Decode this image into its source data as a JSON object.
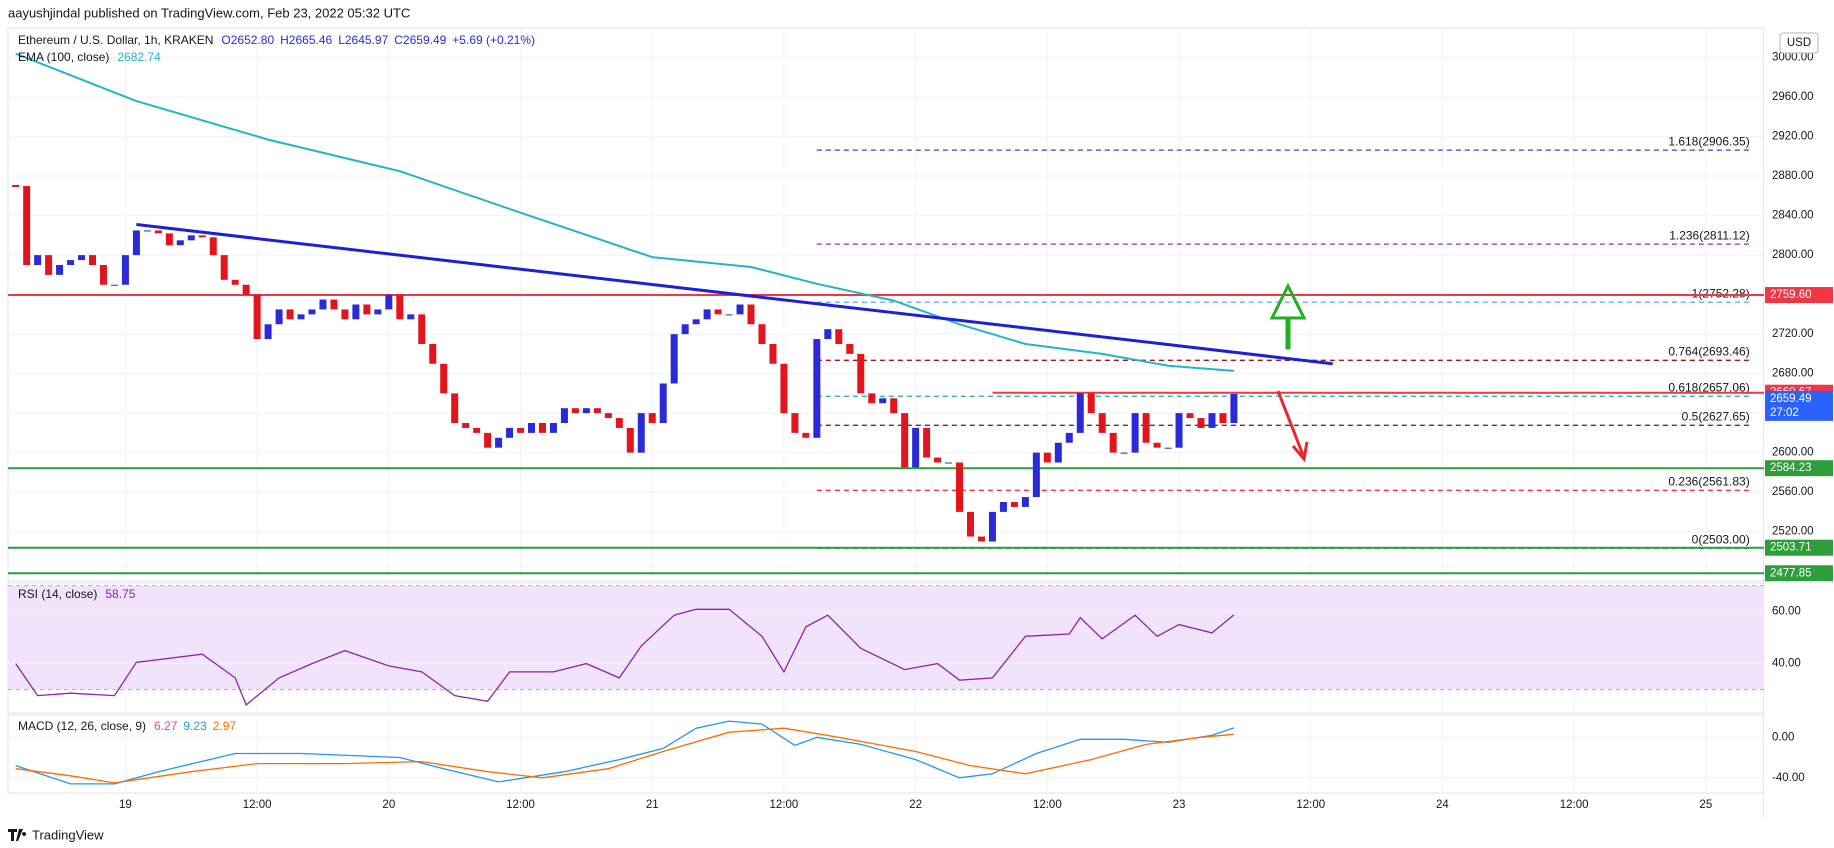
{
  "header": {
    "text": "aayushjindal published on TradingView.com, Feb 23, 2022 05:32 UTC"
  },
  "footer": {
    "brand": "TradingView"
  },
  "chart_data": [
    {
      "type": "candlestick",
      "title": "Ethereum / U.S. Dollar, 1h, KRAKEN",
      "ohlc_labels": [
        "O2652.80",
        "H2665.46",
        "L2645.97",
        "C2659.49",
        "+5.69 (+0.21%)"
      ],
      "currency": "USD",
      "countdown": "27:02",
      "colors": {
        "up": "#2a2ad8",
        "down": "#e3141c",
        "last": "#2962ff"
      },
      "x": [
        14,
        15,
        16,
        17,
        18,
        19,
        20,
        21,
        22,
        23,
        24,
        25,
        26,
        27,
        28,
        29,
        30,
        31,
        32,
        33,
        34,
        35,
        36,
        37,
        38,
        39,
        40,
        41,
        42,
        43,
        44,
        45,
        46,
        47,
        48,
        49,
        50,
        51,
        52,
        53,
        54,
        55,
        56,
        57,
        58,
        59,
        60,
        61,
        62,
        63,
        64,
        65,
        66,
        67,
        68,
        69,
        70,
        71,
        72,
        73,
        74,
        75,
        76,
        77,
        78,
        79,
        80,
        81,
        82,
        83,
        84,
        85,
        86,
        87,
        88,
        89,
        90,
        91,
        92,
        93,
        94,
        95,
        96,
        97,
        98,
        99,
        100,
        101,
        102,
        103,
        104,
        105,
        106,
        107,
        108,
        109,
        110,
        111,
        112,
        113,
        114,
        115,
        116,
        117,
        118,
        119,
        120,
        121,
        122,
        123,
        124,
        125
      ],
      "values": [
        2870,
        2790,
        2800,
        2780,
        2790,
        2795,
        2800,
        2790,
        2770,
        2770,
        2800,
        2825,
        2825,
        2822,
        2810,
        2815,
        2820,
        2818,
        2800,
        2775,
        2770,
        2760,
        2715,
        2730,
        2745,
        2735,
        2740,
        2745,
        2755,
        2745,
        2735,
        2750,
        2740,
        2745,
        2760,
        2735,
        2740,
        2710,
        2690,
        2660,
        2630,
        2625,
        2620,
        2605,
        2615,
        2625,
        2620,
        2630,
        2620,
        2630,
        2645,
        2640,
        2645,
        2640,
        2635,
        2625,
        2600,
        2640,
        2630,
        2670,
        2720,
        2730,
        2735,
        2745,
        2740,
        2740,
        2750,
        2730,
        2710,
        2690,
        2640,
        2620,
        2615,
        2715,
        2725,
        2710,
        2700,
        2660,
        2650,
        2655,
        2640,
        2585,
        2625,
        2595,
        2590,
        2590,
        2540,
        2515,
        2510,
        2540,
        2550,
        2545,
        2555,
        2600,
        2590,
        2610,
        2620,
        2660,
        2640,
        2620,
        2600,
        2600,
        2640,
        2610,
        2605,
        2605,
        2640,
        2635,
        2625,
        2640,
        2630,
        2659.49
      ],
      "overlays": [
        {
          "name": "EMA (100, close)",
          "color": "#22b5c9",
          "x": [
            14,
            25,
            37,
            49,
            60,
            72,
            81,
            87,
            94,
            100,
            106,
            113,
            119,
            125
          ],
          "values": [
            3004,
            2956,
            2917,
            2885,
            2843,
            2798,
            2788,
            2771,
            2754,
            2730,
            2710,
            2700,
            2688,
            2682.74
          ]
        }
      ],
      "trendline": {
        "color": "#1f1fd6",
        "x": [
          25,
          134
        ],
        "values": [
          2831,
          2690
        ]
      },
      "levels": [
        {
          "value": 2759.6,
          "label": "2759.60",
          "color": "#f23645"
        },
        {
          "value": 2660.67,
          "label": "2660.67",
          "color": "#f23645",
          "x0": 103
        },
        {
          "value": 2584.23,
          "label": "2584.23",
          "color": "#2e9e3a"
        },
        {
          "value": 2503.71,
          "label": "2503.71",
          "color": "#2e9e3a"
        },
        {
          "value": 2477.85,
          "label": "2477.85",
          "color": "#2e9e3a"
        }
      ],
      "fibonacci": {
        "x": [
          87,
          172
        ],
        "levels": [
          {
            "label": "1.618(2906.35)",
            "value": 2906.35,
            "color": "#3b3bd0"
          },
          {
            "label": "1.236(2811.12)",
            "value": 2811.12,
            "color": "#9c27b0"
          },
          {
            "label": "1(2752.28)",
            "value": 2752.28,
            "color": "#5aa9e6"
          },
          {
            "label": "0.764(2693.46)",
            "value": 2693.46,
            "color": "#a31515"
          },
          {
            "label": "0.618(2657.06)",
            "value": 2657.06,
            "color": "#26a69a"
          },
          {
            "label": "0.5(2627.65)",
            "value": 2627.65,
            "color": "#7b1f3a"
          },
          {
            "label": "0.236(2561.83)",
            "value": 2561.83,
            "color": "#f23645"
          },
          {
            "label": "0(2503.00)",
            "value": 2503.0,
            "color": "#787b86"
          }
        ]
      },
      "xlim": [
        13.3,
        173.3
      ],
      "ylim": [
        2470,
        3030
      ],
      "yticks": [
        {
          "value": 2520,
          "label": "2520.00"
        },
        {
          "value": 2560,
          "label": "2560.00"
        },
        {
          "value": 2600,
          "label": "2600.00"
        },
        {
          "value": 2640,
          "label": "2640.00"
        },
        {
          "value": 2680,
          "label": "2680.00"
        },
        {
          "value": 2720,
          "label": "2720.00"
        },
        {
          "value": 2760,
          "label": "2760.00"
        },
        {
          "value": 2800,
          "label": "2800.00"
        },
        {
          "value": 2840,
          "label": "2840.00"
        },
        {
          "value": 2880,
          "label": "2880.00"
        },
        {
          "value": 2920,
          "label": "2920.00"
        },
        {
          "value": 2960,
          "label": "2960.00"
        },
        {
          "value": 3000,
          "label": "3000.00"
        }
      ],
      "grid": true
    },
    {
      "type": "line",
      "title": "RSI (14, close)",
      "color": "#8e24aa",
      "band": [
        30,
        70
      ],
      "band_color": "#f1e4fa",
      "x": [
        14,
        16,
        19,
        23,
        25,
        31,
        34,
        35,
        38,
        41,
        44,
        48,
        51,
        54,
        57,
        59,
        63,
        66,
        69,
        71,
        74,
        76,
        79,
        82,
        84,
        86,
        88,
        91,
        95,
        98,
        100,
        103,
        106,
        110,
        111,
        113,
        116,
        118,
        120,
        123,
        125
      ],
      "values": [
        40,
        27.7,
        28.6,
        27.7,
        40.5,
        43.6,
        34.5,
        24.1,
        34.5,
        40,
        45,
        39.1,
        36.8,
        27.7,
        25.5,
        36.8,
        36.8,
        40,
        34.5,
        46.8,
        58.6,
        60.9,
        60.9,
        50.5,
        36.8,
        54.1,
        58.6,
        45.9,
        37.7,
        40,
        33.6,
        34.5,
        50.5,
        51.4,
        57.7,
        49.5,
        58.6,
        50.5,
        55,
        51.8,
        58.75
      ],
      "xlim": [
        13.3,
        173.3
      ],
      "ylim": [
        21,
        71
      ],
      "yticks": [
        {
          "value": 40,
          "label": "40.00"
        },
        {
          "value": 60,
          "label": "60.00"
        }
      ],
      "grid": true
    },
    {
      "type": "line",
      "title": "MACD (12, 26, close, 9)",
      "histogram": {
        "value": 6.27,
        "color": "#f0457a"
      },
      "series": [
        {
          "color": "#2196f3",
          "x": [
            14,
            19,
            23,
            27,
            34,
            40,
            49,
            53,
            58,
            64,
            69,
            73,
            76,
            79,
            82,
            85,
            87,
            91,
            96,
            100,
            103,
            107,
            111,
            115,
            119,
            123,
            125
          ],
          "values": [
            -28,
            -46,
            -46,
            -34,
            -16,
            -16,
            -20,
            -31,
            -44,
            -34,
            -22,
            -11,
            9,
            16,
            13,
            -8,
            0,
            -7,
            -22,
            -40,
            -36,
            -16,
            -2,
            -2,
            -5,
            2,
            9.23
          ]
        },
        {
          "color": "#ff6d00",
          "x": [
            14,
            19,
            23,
            30,
            36,
            44,
            51,
            57,
            62,
            68,
            73,
            79,
            84,
            89,
            96,
            101,
            106,
            112,
            117,
            122,
            125
          ],
          "values": [
            -31,
            -38,
            -45,
            -34,
            -26,
            -26,
            -24,
            -34,
            -40,
            -31,
            -14,
            5,
            9,
            0,
            -14,
            -28,
            -36,
            -22,
            -7,
            0,
            2.97
          ]
        }
      ],
      "xlim": [
        13.3,
        173.3
      ],
      "ylim": [
        -55,
        22
      ],
      "yticks": [
        {
          "value": 0,
          "label": "0.00"
        },
        {
          "value": -40,
          "label": "-40.00"
        }
      ],
      "xticks": [
        {
          "value": 24,
          "label": "19"
        },
        {
          "value": 36,
          "label": "12:00"
        },
        {
          "value": 48,
          "label": "20"
        },
        {
          "value": 60,
          "label": "12:00"
        },
        {
          "value": 72,
          "label": "21"
        },
        {
          "value": 84,
          "label": "12:00"
        },
        {
          "value": 96,
          "label": "22"
        },
        {
          "value": 108,
          "label": "12:00"
        },
        {
          "value": 120,
          "label": "23"
        },
        {
          "value": 132,
          "label": "12:00"
        },
        {
          "value": 144,
          "label": "24"
        },
        {
          "value": 156,
          "label": "12:00"
        },
        {
          "value": 168,
          "label": "25"
        }
      ],
      "grid": true
    }
  ]
}
